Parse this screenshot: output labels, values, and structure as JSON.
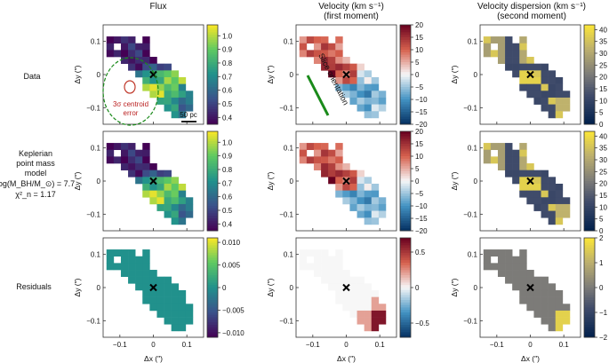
{
  "figure": {
    "columns": [
      {
        "title_line1": "Flux",
        "title_line2": ""
      },
      {
        "title_line1": "Velocity (km s⁻¹)",
        "title_line2": "(first moment)"
      },
      {
        "title_line1": "Velocity dispersion (km s⁻¹)",
        "title_line2": "(second moment)"
      }
    ],
    "rows": [
      {
        "label_lines": [
          "Data"
        ]
      },
      {
        "label_lines": [
          "Keplerian",
          "point mass",
          "model",
          "log(M_BH/M_⊙) = 7.7",
          "χ²_n = 1.17"
        ]
      },
      {
        "label_lines": [
          "Residuals"
        ]
      }
    ],
    "annotations": {
      "centroid_error": [
        "3σ centroid",
        "error"
      ],
      "scale_bar": "50 pc",
      "slice_orientation": "Slice orientation"
    },
    "colors": {
      "slice_line": "#1a8a1a",
      "centroid_ellipse": "#1a8a1a",
      "centroid_circle": "#c0392b",
      "nucleus_marker": "#000000"
    }
  },
  "chart_data": [
    {
      "type": "heatmap",
      "panel": "data-flux",
      "xlabel": "",
      "ylabel": "Δy (″)",
      "xlim": [
        -0.15,
        0.15
      ],
      "ylim": [
        -0.15,
        0.15
      ],
      "xticks": [
        "−0.1",
        "0",
        "0.1"
      ],
      "yticks": [
        "0.1",
        "0",
        "−0.1"
      ],
      "colormap": "viridis",
      "clim": [
        0.35,
        1.08
      ],
      "colorbar_ticks": [
        "1.0",
        "0.9",
        "0.8",
        "0.7",
        "0.6",
        "0.5",
        "0.4"
      ],
      "grid": [
        [
          0.4,
          0.45,
          0.38,
          0.42,
          0.38
        ],
        [
          0.36,
          0.43,
          0.52,
          0.48,
          0.4
        ],
        [
          0.42,
          0.6,
          0.78,
          0.92,
          0.98
        ],
        [
          0.55,
          0.88,
          1.02,
          0.85,
          0.7
        ],
        [
          0.5,
          0.68,
          0.8,
          0.75,
          0.6
        ]
      ],
      "marker": {
        "x": 0.0,
        "y": 0.0
      }
    },
    {
      "type": "heatmap",
      "panel": "data-velocity",
      "xlabel": "",
      "ylabel": "Δy (″)",
      "xlim": [
        -0.15,
        0.15
      ],
      "ylim": [
        -0.15,
        0.15
      ],
      "xticks": [
        "−0.1",
        "0",
        "0.1"
      ],
      "yticks": [
        "0.1",
        "0",
        "−0.1"
      ],
      "colormap": "RdBu_r",
      "clim": [
        -20,
        20
      ],
      "colorbar_ticks": [
        "20",
        "15",
        "10",
        "5",
        "0",
        "−5",
        "−10",
        "−15",
        "−20"
      ],
      "grid": [
        [
          10,
          12,
          8,
          -5,
          3
        ],
        [
          14,
          16,
          12,
          6,
          2
        ],
        [
          8,
          18,
          10,
          -3,
          -6
        ],
        [
          4,
          2,
          -8,
          -9,
          -7
        ],
        [
          2,
          -4,
          -6,
          -8,
          -5
        ]
      ],
      "marker": {
        "x": 0.0,
        "y": 0.0
      }
    },
    {
      "type": "heatmap",
      "panel": "data-dispersion",
      "xlabel": "",
      "ylabel": "Δy (″)",
      "xlim": [
        -0.15,
        0.15
      ],
      "ylim": [
        -0.15,
        0.15
      ],
      "xticks": [
        "−0.1",
        "0",
        "0.1"
      ],
      "yticks": [
        "0.1",
        "0",
        "−0.1"
      ],
      "colormap": "cividis",
      "clim": [
        0,
        42
      ],
      "colorbar_ticks": [
        "40",
        "35",
        "30",
        "25",
        "20",
        "15",
        "10",
        "5",
        "0"
      ],
      "grid": [
        [
          28,
          12,
          30,
          12,
          10
        ],
        [
          12,
          11,
          12,
          11,
          12
        ],
        [
          11,
          12,
          38,
          12,
          11
        ],
        [
          12,
          11,
          12,
          11,
          12
        ],
        [
          11,
          12,
          11,
          12,
          32
        ]
      ],
      "marker": {
        "x": 0.0,
        "y": 0.0
      }
    },
    {
      "type": "heatmap",
      "panel": "model-flux",
      "xlabel": "",
      "ylabel": "Δy (″)",
      "xlim": [
        -0.15,
        0.15
      ],
      "ylim": [
        -0.15,
        0.15
      ],
      "xticks": [
        "−0.1",
        "0",
        "0.1"
      ],
      "yticks": [
        "0.1",
        "0",
        "−0.1"
      ],
      "colormap": "viridis",
      "clim": [
        0.35,
        1.08
      ],
      "colorbar_ticks": [
        "1.0",
        "0.9",
        "0.8",
        "0.7",
        "0.6",
        "0.5",
        "0.4"
      ],
      "grid": [
        [
          0.4,
          0.45,
          0.38,
          0.42,
          0.38
        ],
        [
          0.36,
          0.43,
          0.52,
          0.48,
          0.4
        ],
        [
          0.42,
          0.6,
          0.78,
          0.92,
          0.98
        ],
        [
          0.55,
          0.88,
          1.02,
          0.85,
          0.7
        ],
        [
          0.5,
          0.68,
          0.8,
          0.75,
          0.6
        ]
      ],
      "marker": {
        "x": 0.0,
        "y": 0.0
      }
    },
    {
      "type": "heatmap",
      "panel": "model-velocity",
      "xlabel": "",
      "ylabel": "Δy (″)",
      "xlim": [
        -0.15,
        0.15
      ],
      "ylim": [
        -0.15,
        0.15
      ],
      "xticks": [
        "−0.1",
        "0",
        "0.1"
      ],
      "yticks": [
        "0.1",
        "0",
        "−0.1"
      ],
      "colormap": "RdBu_r",
      "clim": [
        -20,
        20
      ],
      "colorbar_ticks": [
        "20",
        "15",
        "10",
        "5",
        "0",
        "−5",
        "−10",
        "−15",
        "−20"
      ],
      "grid": [
        [
          10,
          12,
          8,
          -5,
          3
        ],
        [
          14,
          16,
          12,
          6,
          2
        ],
        [
          8,
          18,
          10,
          -3,
          -6
        ],
        [
          4,
          2,
          -8,
          -9,
          -7
        ],
        [
          2,
          -4,
          -6,
          -8,
          -5
        ]
      ],
      "marker": {
        "x": 0.0,
        "y": 0.0
      }
    },
    {
      "type": "heatmap",
      "panel": "model-dispersion",
      "xlabel": "",
      "ylabel": "Δy (″)",
      "xlim": [
        -0.15,
        0.15
      ],
      "ylim": [
        -0.15,
        0.15
      ],
      "xticks": [
        "−0.1",
        "0",
        "0.1"
      ],
      "yticks": [
        "0.1",
        "0",
        "−0.1"
      ],
      "colormap": "cividis",
      "clim": [
        0,
        42
      ],
      "colorbar_ticks": [
        "40",
        "35",
        "30",
        "25",
        "20",
        "15",
        "10",
        "5",
        "0"
      ],
      "grid": [
        [
          28,
          12,
          30,
          12,
          10
        ],
        [
          12,
          11,
          12,
          11,
          12
        ],
        [
          11,
          12,
          38,
          12,
          11
        ],
        [
          12,
          11,
          12,
          11,
          12
        ],
        [
          11,
          12,
          11,
          12,
          32
        ]
      ],
      "marker": {
        "x": 0.0,
        "y": 0.0
      }
    },
    {
      "type": "heatmap",
      "panel": "residual-flux",
      "xlabel": "Δx (″)",
      "ylabel": "Δy (″)",
      "xlim": [
        -0.15,
        0.15
      ],
      "ylim": [
        -0.15,
        0.15
      ],
      "xticks": [
        "−0.1",
        "0",
        "0.1"
      ],
      "yticks": [
        "0.1",
        "0",
        "−0.1"
      ],
      "colormap": "viridis",
      "clim": [
        -0.011,
        0.011
      ],
      "colorbar_ticks": [
        "0.010",
        "0.005",
        "0",
        "−0.005",
        "−0.010"
      ],
      "grid": [
        [
          0,
          0,
          0,
          0,
          0
        ],
        [
          0,
          0,
          0,
          0,
          0
        ],
        [
          0,
          0,
          0,
          0,
          0
        ],
        [
          0,
          0,
          0,
          0,
          0
        ],
        [
          0,
          0,
          0,
          0,
          0
        ]
      ],
      "marker": {
        "x": 0.0,
        "y": 0.0
      }
    },
    {
      "type": "heatmap",
      "panel": "residual-velocity",
      "xlabel": "Δx (″)",
      "ylabel": "Δy (″)",
      "xlim": [
        -0.15,
        0.15
      ],
      "ylim": [
        -0.15,
        0.15
      ],
      "xticks": [
        "−0.1",
        "0",
        "0.1"
      ],
      "yticks": [
        "0.1",
        "0",
        "−0.1"
      ],
      "colormap": "RdBu_r",
      "clim": [
        -0.7,
        0.7
      ],
      "colorbar_ticks": [
        "0.5",
        "0",
        "−0.5"
      ],
      "grid": [
        [
          0,
          0,
          0,
          0,
          0
        ],
        [
          0,
          0,
          0,
          0,
          0
        ],
        [
          0,
          0,
          0,
          0,
          0
        ],
        [
          0,
          0,
          0,
          0,
          0.2
        ],
        [
          0,
          0,
          0,
          0.2,
          0.62
        ]
      ],
      "marker": {
        "x": 0.0,
        "y": 0.0
      }
    },
    {
      "type": "heatmap",
      "panel": "residual-dispersion",
      "xlabel": "Δx (″)",
      "ylabel": "Δy (″)",
      "xlim": [
        -0.15,
        0.15
      ],
      "ylim": [
        -0.15,
        0.15
      ],
      "xticks": [
        "−0.1",
        "0",
        "0.1"
      ],
      "yticks": [
        "0.1",
        "0",
        "−0.1"
      ],
      "colormap": "cividis",
      "clim": [
        -2,
        2
      ],
      "colorbar_ticks": [
        "2",
        "1",
        "0",
        "−1",
        "−2"
      ],
      "grid": [
        [
          0,
          0,
          0,
          0,
          0
        ],
        [
          0,
          0,
          0,
          0,
          0
        ],
        [
          0,
          0,
          0,
          0,
          0
        ],
        [
          0,
          0,
          0,
          0,
          0
        ],
        [
          0,
          0,
          0,
          0,
          1.6
        ]
      ],
      "marker": {
        "x": 0.0,
        "y": 0.0
      }
    }
  ]
}
